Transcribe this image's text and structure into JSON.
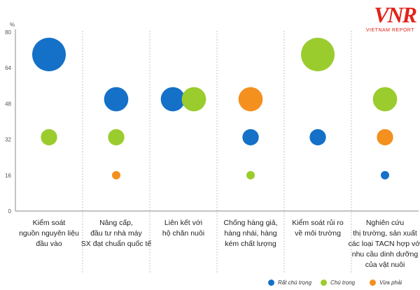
{
  "logo": {
    "mark": "VNR",
    "text": "VIETNAM REPORT"
  },
  "chart_data": {
    "type": "scatter",
    "ylabel": "%",
    "ylim": [
      0,
      80
    ],
    "yticks": [
      0,
      16,
      32,
      48,
      64,
      80
    ],
    "grid": false,
    "legend_position": "bottom-right",
    "categories": [
      [
        "Kiểm soát",
        "nguồn nguyên liệu",
        "đầu vào"
      ],
      [
        "Nâng cấp,",
        "đầu tư nhà máy",
        "SX đạt chuẩn quốc tế"
      ],
      [
        "Liên kết với",
        "hộ chăn nuôi"
      ],
      [
        "Chống hàng giả,",
        "hàng nhái, hàng",
        "kém chất lượng"
      ],
      [
        "Kiểm soát rủi ro",
        "về môi trường"
      ],
      [
        "Nghiên cứu",
        "thị trường, sản xuất",
        "các loại TACN hợp với",
        "nhu cầu dinh dưỡng",
        "của vật nuôi"
      ]
    ],
    "series": [
      {
        "name": "Rất chú trọng",
        "color": "#1570c8",
        "values": [
          70,
          50,
          50,
          33,
          33,
          16
        ]
      },
      {
        "name": "Chú trọng",
        "color": "#9bcc2e",
        "values": [
          33,
          33,
          50,
          16,
          70,
          50
        ]
      },
      {
        "name": "Vừa phải",
        "color": "#f4901e",
        "values": [
          null,
          16,
          null,
          50,
          null,
          33
        ]
      }
    ]
  }
}
